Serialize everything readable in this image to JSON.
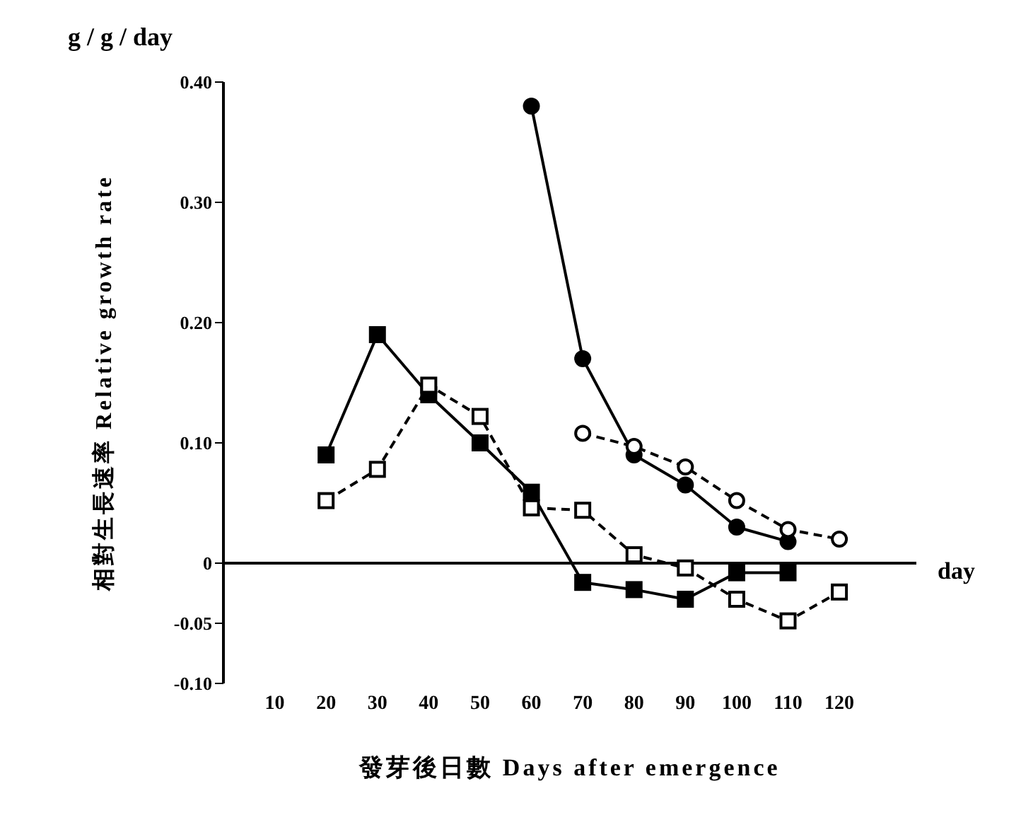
{
  "chart_data": {
    "type": "line",
    "xlabel": "發芽後日數  Days after emergence",
    "ylabel": "相對生長速率  Relative growth rate",
    "annotations": [
      "g / g / day",
      "day"
    ],
    "xlim": [
      0,
      135
    ],
    "xticks": [
      10,
      20,
      30,
      40,
      50,
      60,
      70,
      80,
      90,
      100,
      110,
      120
    ],
    "ylim": [
      -0.1,
      0.4
    ],
    "yticks": [
      {
        "value": 0.4,
        "label": "0.40"
      },
      {
        "value": 0.3,
        "label": "0.30"
      },
      {
        "value": 0.2,
        "label": "0.20"
      },
      {
        "value": 0.1,
        "label": "0.10"
      },
      0,
      -0.05,
      {
        "value": -0.1,
        "label": "-0.10"
      }
    ],
    "ref_lines": [
      {
        "axis": "y",
        "value": 0,
        "label": null
      }
    ],
    "grid": false,
    "legend": false,
    "series": [
      {
        "color": "#000000",
        "marker": "circle",
        "line_style": "solid",
        "x": [
          60,
          70,
          80,
          90,
          100,
          110
        ],
        "values": [
          0.38,
          0.17,
          0.09,
          0.065,
          0.03,
          0.018
        ]
      },
      {
        "color": "#000000",
        "marker": "circle",
        "line_style": "dashed",
        "x": [
          70,
          80,
          90,
          100,
          110,
          120
        ],
        "values": [
          0.108,
          0.097,
          0.08,
          0.052,
          0.028,
          0.02
        ]
      },
      {
        "color": "#000000",
        "marker": "square",
        "line_style": "solid",
        "x": [
          20,
          30,
          40,
          50,
          60,
          70,
          80,
          90,
          100,
          110
        ],
        "values": [
          0.09,
          0.19,
          0.14,
          0.1,
          0.059,
          -0.016,
          -0.022,
          -0.03,
          -0.008,
          -0.008
        ]
      },
      {
        "color": "#000000",
        "marker": "square",
        "line_style": "dashed",
        "x": [
          20,
          30,
          40,
          50,
          60,
          70,
          80,
          90,
          100,
          110,
          120
        ],
        "values": [
          0.052,
          0.078,
          0.148,
          0.122,
          0.046,
          0.044,
          0.007,
          -0.004,
          -0.03,
          -0.048,
          -0.024
        ]
      }
    ]
  }
}
